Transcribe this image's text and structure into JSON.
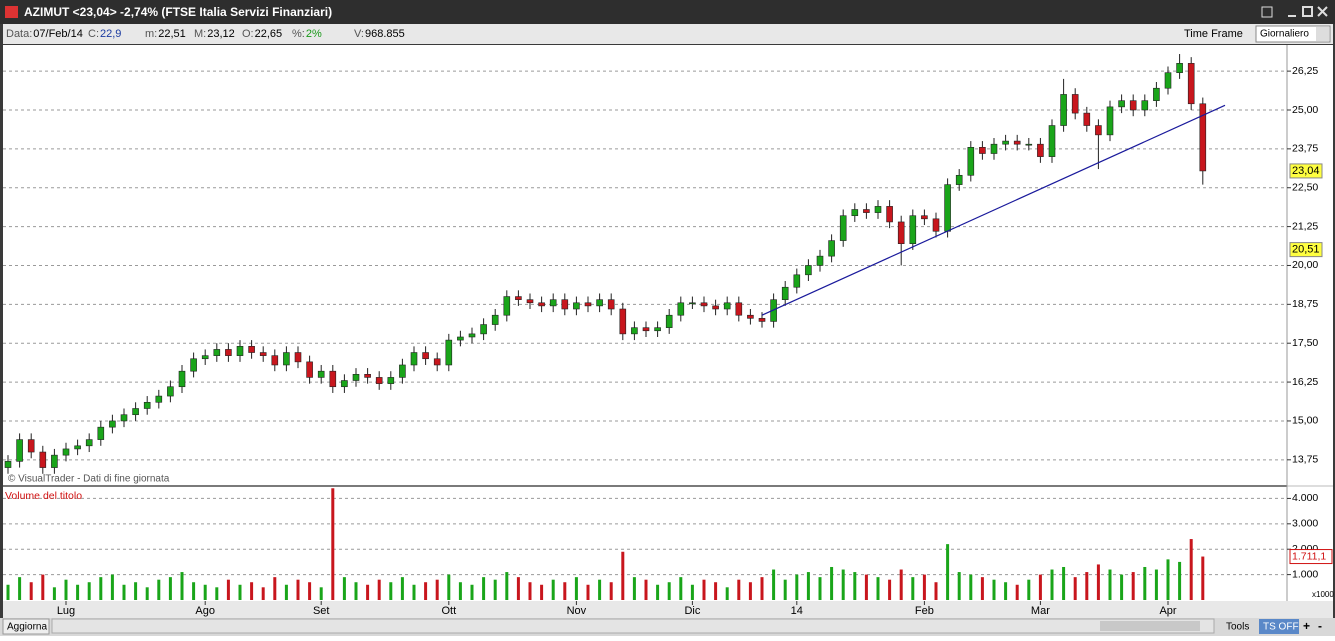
{
  "window": {
    "title": "AZIMUT <23,04> -2,74%  (FTSE Italia Servizi Finanziari)"
  },
  "infobar": [
    {
      "label": "Data:",
      "value": "07/Feb/14"
    },
    {
      "label": "C:",
      "value": "22,9"
    },
    {
      "label": "m:",
      "value": "22,51"
    },
    {
      "label": "M:",
      "value": "23,12"
    },
    {
      "label": "O:",
      "value": "22,65"
    },
    {
      "label": "%:",
      "value": "2%"
    },
    {
      "label": "V:",
      "value": "968.855"
    }
  ],
  "toolbar": {
    "time_frame": "Time Frame",
    "period": "Giornaliero"
  },
  "copyright": "© VisualTrader - Dati di fine giornata",
  "bottombar": {
    "refresh": "Aggiorna",
    "tools": "Tools",
    "ts": "TS OFF"
  },
  "chart_data": [
    {
      "type": "candlestick",
      "up_color": "#1aa51a",
      "down_color": "#c8161d",
      "categories": [
        null,
        null,
        null,
        null,
        null,
        "Lug",
        null,
        null,
        null,
        null,
        null,
        null,
        null,
        null,
        null,
        null,
        null,
        "Ago",
        null,
        null,
        null,
        null,
        null,
        null,
        null,
        null,
        null,
        "Set",
        null,
        null,
        null,
        null,
        null,
        null,
        null,
        null,
        null,
        null,
        "Ott",
        null,
        null,
        null,
        null,
        null,
        null,
        null,
        null,
        null,
        null,
        "Nov",
        null,
        null,
        null,
        null,
        null,
        null,
        null,
        null,
        null,
        "Dic",
        null,
        null,
        null,
        null,
        null,
        null,
        null,
        null,
        "14",
        null,
        null,
        null,
        null,
        null,
        null,
        null,
        null,
        null,
        null,
        "Feb",
        null,
        null,
        null,
        null,
        null,
        null,
        null,
        null,
        null,
        "Mar",
        null,
        null,
        null,
        null,
        null,
        null,
        null,
        null,
        null,
        null,
        "Apr",
        null,
        null,
        null
      ],
      "open": [
        13.5,
        13.7,
        14.4,
        14.0,
        13.5,
        13.9,
        14.1,
        14.2,
        14.4,
        14.8,
        15.0,
        15.2,
        15.4,
        15.6,
        15.8,
        16.1,
        16.6,
        17.0,
        17.1,
        17.3,
        17.1,
        17.4,
        17.2,
        17.1,
        16.8,
        17.2,
        16.9,
        16.4,
        16.6,
        16.1,
        16.3,
        16.5,
        16.4,
        16.2,
        16.4,
        16.8,
        17.2,
        17.0,
        16.8,
        17.6,
        17.7,
        17.8,
        18.1,
        18.4,
        19.0,
        18.9,
        18.8,
        18.7,
        18.9,
        18.6,
        18.8,
        18.7,
        18.9,
        18.6,
        17.8,
        18.0,
        17.9,
        18.0,
        18.4,
        18.8,
        18.8,
        18.7,
        18.6,
        18.8,
        18.4,
        18.3,
        18.2,
        18.9,
        19.3,
        19.7,
        20.0,
        20.3,
        20.8,
        21.6,
        21.8,
        21.7,
        21.9,
        21.4,
        20.7,
        21.6,
        21.5,
        21.1,
        22.6,
        22.9,
        23.8,
        23.6,
        23.9,
        24.0,
        23.9,
        23.9,
        23.5,
        24.5,
        25.5,
        24.9,
        24.5,
        24.2,
        25.1,
        25.3,
        25.0,
        25.3,
        25.7,
        26.2,
        26.5,
        25.2
      ],
      "high": [
        13.9,
        14.6,
        14.6,
        14.2,
        14.1,
        14.3,
        14.4,
        14.6,
        15.0,
        15.2,
        15.4,
        15.6,
        15.8,
        16.0,
        16.3,
        16.8,
        17.2,
        17.3,
        17.5,
        17.5,
        17.6,
        17.6,
        17.4,
        17.3,
        17.4,
        17.4,
        17.1,
        16.8,
        16.8,
        16.5,
        16.7,
        16.7,
        16.6,
        16.6,
        17.0,
        17.4,
        17.4,
        17.2,
        17.8,
        17.9,
        18.0,
        18.3,
        18.6,
        19.2,
        19.2,
        19.1,
        19.0,
        19.1,
        19.1,
        19.0,
        19.0,
        19.1,
        19.1,
        18.8,
        18.2,
        18.2,
        18.2,
        18.6,
        19.0,
        19.0,
        19.0,
        18.9,
        19.0,
        19.0,
        18.6,
        18.5,
        19.1,
        19.5,
        19.9,
        20.2,
        20.5,
        21.0,
        21.8,
        22.0,
        22.0,
        22.1,
        22.1,
        21.6,
        21.8,
        21.8,
        21.7,
        22.8,
        23.1,
        24.0,
        24.0,
        24.1,
        24.2,
        24.2,
        24.1,
        24.1,
        24.7,
        26.0,
        25.7,
        25.1,
        24.7,
        25.3,
        25.5,
        25.5,
        25.5,
        25.9,
        26.4,
        26.8,
        26.7,
        25.4
      ],
      "low": [
        13.3,
        13.5,
        13.8,
        13.3,
        13.3,
        13.7,
        13.9,
        14.0,
        14.2,
        14.6,
        14.8,
        15.0,
        15.2,
        15.4,
        15.6,
        15.9,
        16.4,
        16.8,
        16.9,
        16.9,
        16.9,
        17.0,
        16.9,
        16.6,
        16.6,
        16.7,
        16.2,
        16.2,
        15.9,
        15.9,
        16.1,
        16.2,
        16.0,
        16.0,
        16.2,
        16.6,
        16.8,
        16.6,
        16.6,
        17.4,
        17.5,
        17.6,
        17.9,
        18.2,
        18.7,
        18.6,
        18.5,
        18.5,
        18.4,
        18.4,
        18.5,
        18.5,
        18.4,
        17.6,
        17.6,
        17.7,
        17.7,
        17.8,
        18.2,
        18.6,
        18.5,
        18.4,
        18.4,
        18.2,
        18.1,
        18.0,
        18.0,
        18.7,
        19.1,
        19.5,
        19.8,
        20.1,
        20.6,
        21.4,
        21.5,
        21.5,
        21.2,
        20.0,
        20.5,
        21.3,
        20.9,
        20.9,
        22.4,
        22.7,
        23.4,
        23.4,
        23.7,
        23.7,
        23.7,
        23.3,
        23.3,
        24.3,
        24.7,
        24.3,
        23.1,
        24.0,
        24.9,
        24.8,
        24.8,
        25.1,
        25.5,
        26.0,
        25.0,
        22.6
      ],
      "close": [
        13.7,
        14.4,
        14.0,
        13.5,
        13.9,
        14.1,
        14.2,
        14.4,
        14.8,
        15.0,
        15.2,
        15.4,
        15.6,
        15.8,
        16.1,
        16.6,
        17.0,
        17.1,
        17.3,
        17.1,
        17.4,
        17.2,
        17.1,
        16.8,
        17.2,
        16.9,
        16.4,
        16.6,
        16.1,
        16.3,
        16.5,
        16.4,
        16.2,
        16.4,
        16.8,
        17.2,
        17.0,
        16.8,
        17.6,
        17.7,
        17.8,
        18.1,
        18.4,
        19.0,
        18.9,
        18.8,
        18.7,
        18.9,
        18.6,
        18.8,
        18.7,
        18.9,
        18.6,
        17.8,
        18.0,
        17.9,
        18.0,
        18.4,
        18.8,
        18.8,
        18.7,
        18.6,
        18.8,
        18.4,
        18.3,
        18.2,
        18.9,
        19.3,
        19.7,
        20.0,
        20.3,
        20.8,
        21.6,
        21.8,
        21.7,
        21.9,
        21.4,
        20.7,
        21.6,
        21.5,
        21.1,
        22.6,
        22.9,
        23.8,
        23.6,
        23.9,
        24.0,
        23.9,
        23.9,
        23.5,
        24.5,
        25.5,
        24.9,
        24.5,
        24.2,
        25.1,
        25.3,
        25.0,
        25.3,
        25.7,
        26.2,
        26.5,
        25.2,
        23.04
      ],
      "ylim": [
        12.94,
        27.09
      ],
      "yticks": [
        {
          "value": 13.75,
          "label": "13,75"
        },
        {
          "value": 15,
          "label": "15,00"
        },
        {
          "value": 16.25,
          "label": "16,25"
        },
        {
          "value": 17.5,
          "label": "17,50"
        },
        {
          "value": 18.75,
          "label": "18,75"
        },
        {
          "value": 20,
          "label": "20,00"
        },
        {
          "value": 21.25,
          "label": "21,25"
        },
        {
          "value": 22.5,
          "label": "22,50"
        },
        {
          "value": 23.75,
          "label": "23,75"
        },
        {
          "value": 25,
          "label": "25,00"
        },
        {
          "value": 26.25,
          "label": "26,25"
        }
      ],
      "grid": true,
      "trendline": {
        "values": [
          18.4,
          25.15
        ],
        "color": "#1a1a9c"
      },
      "annotations": [
        {
          "value": 23.04,
          "label": "23,04"
        },
        {
          "value": 20.51,
          "label": "20,51"
        }
      ]
    },
    {
      "type": "bar",
      "title": "Volume del titolo",
      "unit_label": "x1000",
      "values": [
        600,
        900,
        700,
        1000,
        500,
        800,
        600,
        700,
        900,
        1000,
        600,
        700,
        500,
        800,
        900,
        1100,
        700,
        600,
        500,
        800,
        600,
        700,
        500,
        900,
        600,
        800,
        700,
        500,
        4400,
        900,
        700,
        600,
        800,
        700,
        900,
        600,
        700,
        800,
        1000,
        700,
        600,
        900,
        800,
        1100,
        900,
        700,
        600,
        800,
        700,
        900,
        600,
        800,
        700,
        1900,
        900,
        800,
        600,
        700,
        900,
        600,
        800,
        700,
        500,
        800,
        700,
        900,
        1200,
        800,
        1000,
        1100,
        900,
        1300,
        1200,
        1100,
        1000,
        900,
        800,
        1200,
        900,
        1000,
        700,
        2200,
        1100,
        1000,
        900,
        800,
        700,
        600,
        800,
        1000,
        1200,
        1300,
        900,
        1100,
        1400,
        1200,
        1000,
        1100,
        1300,
        1200,
        1600,
        1500,
        2400,
        1711.1
      ],
      "ylim": [
        0,
        4450
      ],
      "yticks": [
        {
          "value": 1000,
          "label": "1.000"
        },
        {
          "value": 2000,
          "label": "2.000"
        },
        {
          "value": 3000,
          "label": "3.000"
        },
        {
          "value": 4000,
          "label": "4.000"
        }
      ],
      "grid": true,
      "annotations": [
        {
          "value": 1711.1,
          "label": "1.711,1"
        }
      ]
    }
  ]
}
